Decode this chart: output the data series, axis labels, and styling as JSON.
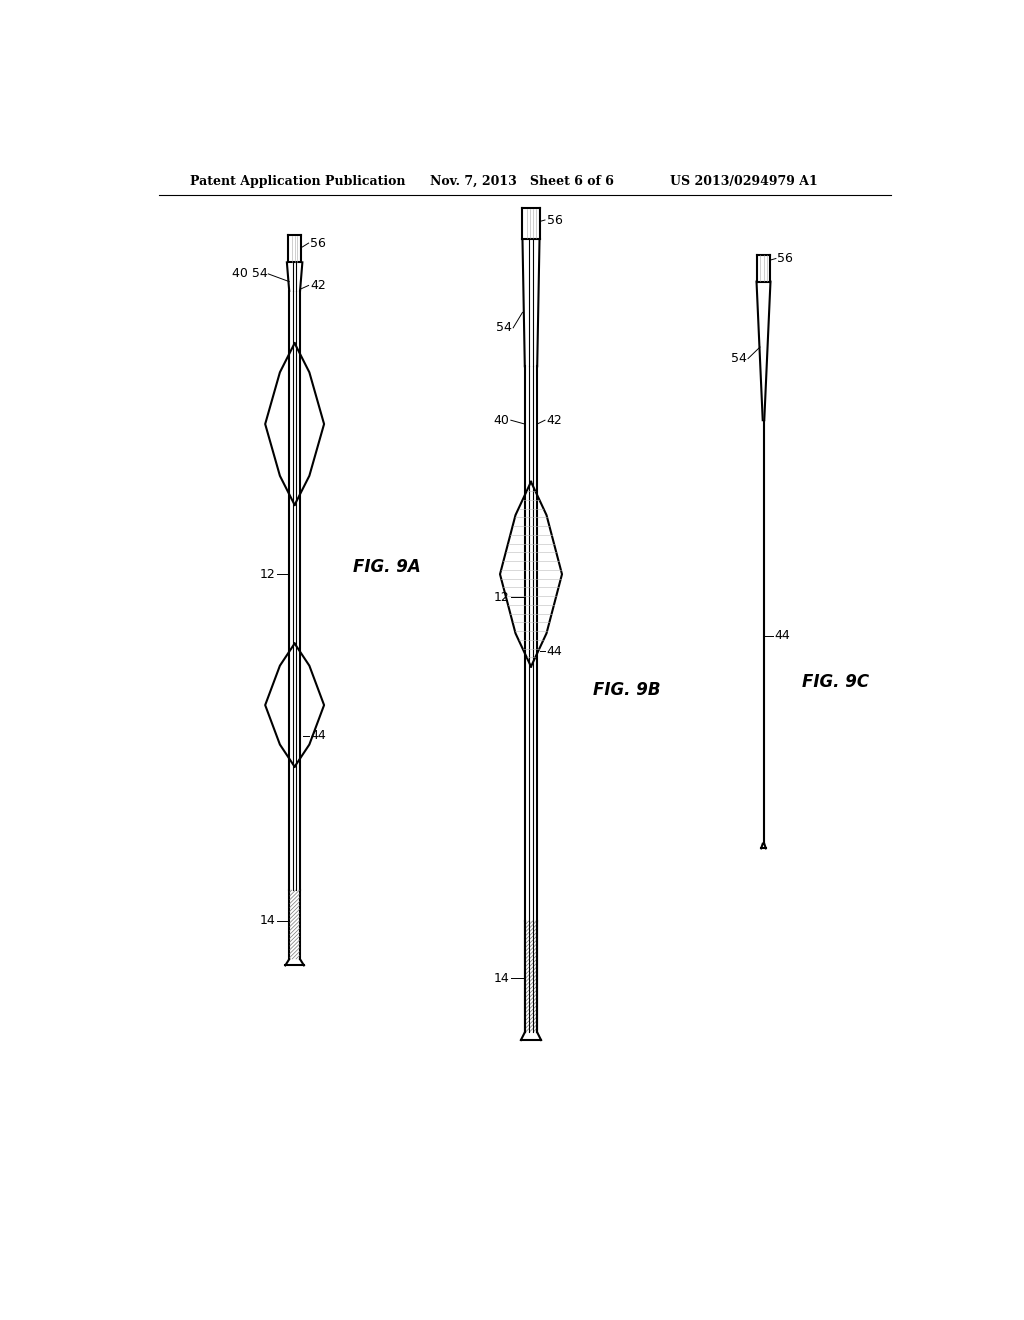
{
  "bg_color": "#ffffff",
  "line_color": "#000000",
  "header_left": "Patent Application Publication",
  "header_center": "Nov. 7, 2013   Sheet 6 of 6",
  "header_right": "US 2013/0294979 A1",
  "fig9a_label": "FIG. 9A",
  "fig9b_label": "FIG. 9B",
  "fig9c_label": "FIG. 9C"
}
